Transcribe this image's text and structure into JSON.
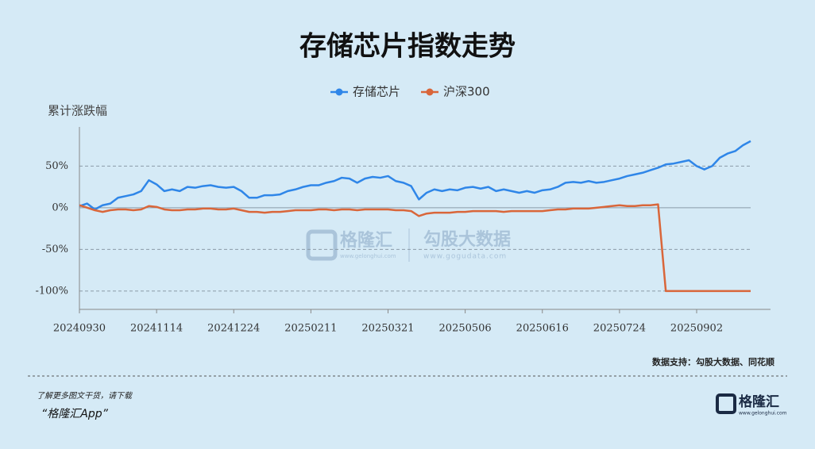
{
  "chart_data": {
    "type": "line",
    "title": "存储芯片指数走势",
    "y_label": "累计涨跌幅",
    "categories": [
      "20240930",
      null,
      null,
      null,
      null,
      null,
      null,
      null,
      null,
      null,
      "20241114",
      null,
      null,
      null,
      null,
      null,
      null,
      null,
      null,
      null,
      "20241224",
      null,
      null,
      null,
      null,
      null,
      null,
      null,
      null,
      null,
      "20250211",
      null,
      null,
      null,
      null,
      null,
      null,
      null,
      null,
      null,
      "20250321",
      null,
      null,
      null,
      null,
      null,
      null,
      null,
      null,
      null,
      "20250506",
      null,
      null,
      null,
      null,
      null,
      null,
      null,
      null,
      null,
      "20250616",
      null,
      null,
      null,
      null,
      null,
      null,
      null,
      null,
      null,
      "20250724",
      null,
      null,
      null,
      null,
      null,
      null,
      null,
      null,
      null,
      "20250902",
      null,
      null,
      null,
      null,
      null,
      null,
      null
    ],
    "series": [
      {
        "name": "存储芯片",
        "color": "#2f86e8",
        "values": [
          2,
          5,
          -2,
          3,
          5,
          12,
          14,
          16,
          20,
          33,
          28,
          20,
          22,
          20,
          25,
          24,
          26,
          27,
          25,
          24,
          25,
          20,
          12,
          12,
          15,
          15,
          16,
          20,
          22,
          25,
          27,
          27,
          30,
          32,
          36,
          35,
          30,
          35,
          37,
          36,
          38,
          32,
          30,
          26,
          10,
          18,
          22,
          20,
          22,
          21,
          24,
          25,
          23,
          25,
          20,
          22,
          20,
          18,
          20,
          18,
          21,
          22,
          25,
          30,
          31,
          30,
          32,
          30,
          31,
          33,
          35,
          38,
          40,
          42,
          45,
          48,
          52,
          53,
          55,
          57,
          50,
          46,
          50,
          60,
          65,
          68,
          75,
          80
        ]
      },
      {
        "name": "沪深300",
        "color": "#d9663a",
        "values": [
          3,
          0,
          -3,
          -5,
          -3,
          -2,
          -2,
          -3,
          -2,
          2,
          1,
          -2,
          -3,
          -3,
          -2,
          -2,
          -1,
          -1,
          -2,
          -2,
          -1,
          -3,
          -5,
          -5,
          -6,
          -5,
          -5,
          -4,
          -3,
          -3,
          -3,
          -2,
          -2,
          -3,
          -2,
          -2,
          -3,
          -2,
          -2,
          -2,
          -2,
          -3,
          -3,
          -4,
          -10,
          -7,
          -6,
          -6,
          -6,
          -5,
          -5,
          -4,
          -4,
          -4,
          -4,
          -5,
          -4,
          -4,
          -4,
          -4,
          -4,
          -3,
          -2,
          -2,
          -1,
          -1,
          -1,
          0,
          1,
          2,
          3,
          2,
          2,
          3,
          3,
          4,
          -100,
          -100,
          -100,
          -100,
          -100,
          -100,
          -100,
          -100,
          -100,
          -100,
          -100,
          -100
        ]
      }
    ],
    "ylim": [
      -122,
      97
    ],
    "yticks": [
      {
        "value": -100,
        "label": "-100%"
      },
      {
        "value": -50,
        "label": "-50%"
      },
      {
        "value": 0,
        "label": "0%"
      },
      {
        "value": 50,
        "label": "50%"
      }
    ],
    "grid": true,
    "legend": "top"
  },
  "source": "数据支持：勾股大数据、同花顺",
  "footer": {
    "line1": "了解更多图文干货，请下载",
    "line2": "“格隆汇App”"
  },
  "logo": {
    "name": "格隆汇",
    "url": "www.gelonghui.com"
  },
  "watermark": {
    "left": "格隆汇",
    "left_url": "www.gelonghui.com",
    "right": "勾股大数据",
    "right_url": "www.gogudata.com"
  }
}
